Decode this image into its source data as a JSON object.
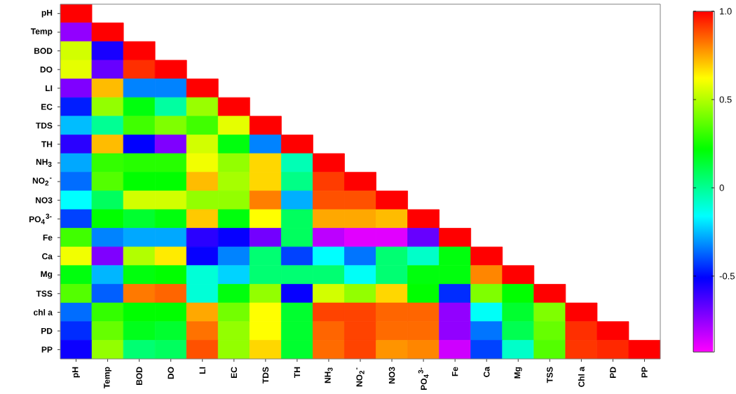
{
  "chart_data": {
    "type": "heatmap",
    "categories": [
      "pH",
      "Temp",
      "BOD",
      "DO",
      "LI",
      "EC",
      "TDS",
      "TH",
      "NH$_{3}$",
      "NO$_{2}$$^{-}$",
      "NO3",
      "PO$_{4}$$^{3-}$",
      "Fe",
      "Ca",
      "Mg",
      "TSS",
      "Chl a",
      "PD",
      "PP"
    ],
    "y_categories": [
      "pH",
      "Temp",
      "BOD",
      "DO",
      "LI",
      "EC",
      "TDS",
      "TH",
      "NH$_{3}$",
      "NO$_{2}$$^{-}$",
      "NO3",
      "PO$_{4}$$^{3-}$",
      "Fe",
      "Ca",
      "Mg",
      "TSS",
      "chl a",
      "PD",
      "PP"
    ],
    "cells": [
      [
        1,
        null,
        null,
        null,
        null,
        null,
        null,
        null,
        null,
        null,
        null,
        null,
        null,
        null,
        null,
        null,
        null,
        null,
        null
      ],
      [
        -0.75,
        1,
        null,
        null,
        null,
        null,
        null,
        null,
        null,
        null,
        null,
        null,
        null,
        null,
        null,
        null,
        null,
        null,
        null
      ],
      [
        0.55,
        -0.55,
        1,
        null,
        null,
        null,
        null,
        null,
        null,
        null,
        null,
        null,
        null,
        null,
        null,
        null,
        null,
        null,
        null
      ],
      [
        0.58,
        -0.68,
        0.93,
        1,
        null,
        null,
        null,
        null,
        null,
        null,
        null,
        null,
        null,
        null,
        null,
        null,
        null,
        null,
        null
      ],
      [
        -0.72,
        0.72,
        -0.33,
        -0.33,
        1,
        null,
        null,
        null,
        null,
        null,
        null,
        null,
        null,
        null,
        null,
        null,
        null,
        null,
        null
      ],
      [
        -0.47,
        0.45,
        0.2,
        -0.02,
        0.46,
        1,
        null,
        null,
        null,
        null,
        null,
        null,
        null,
        null,
        null,
        null,
        null,
        null,
        null
      ],
      [
        -0.25,
        0.0,
        0.32,
        0.42,
        0.32,
        0.58,
        1,
        null,
        null,
        null,
        null,
        null,
        null,
        null,
        null,
        null,
        null,
        null,
        null
      ],
      [
        -0.58,
        0.72,
        -0.51,
        -0.72,
        0.55,
        0.2,
        -0.33,
        1,
        null,
        null,
        null,
        null,
        null,
        null,
        null,
        null,
        null,
        null,
        null
      ],
      [
        -0.28,
        0.3,
        0.28,
        0.28,
        0.6,
        0.45,
        0.68,
        -0.05,
        1,
        null,
        null,
        null,
        null,
        null,
        null,
        null,
        null,
        null,
        null
      ],
      [
        -0.36,
        0.35,
        0.22,
        0.22,
        0.72,
        0.48,
        0.68,
        0.02,
        0.91,
        1,
        null,
        null,
        null,
        null,
        null,
        null,
        null,
        null,
        null
      ],
      [
        -0.16,
        0.08,
        0.55,
        0.55,
        0.45,
        0.45,
        0.81,
        -0.27,
        0.88,
        0.88,
        1,
        null,
        null,
        null,
        null,
        null,
        null,
        null,
        null
      ],
      [
        -0.42,
        0.22,
        0.15,
        0.2,
        0.7,
        0.2,
        0.62,
        0.08,
        0.75,
        0.75,
        0.72,
        1,
        null,
        null,
        null,
        null,
        null,
        null,
        null
      ],
      [
        0.32,
        -0.33,
        -0.28,
        -0.28,
        -0.58,
        -0.52,
        -0.7,
        0.08,
        -0.82,
        -0.88,
        -0.88,
        -0.68,
        1,
        null,
        null,
        null,
        null,
        null,
        null
      ],
      [
        0.6,
        -0.72,
        0.5,
        0.65,
        -0.52,
        -0.33,
        0.05,
        -0.42,
        -0.16,
        -0.35,
        0.05,
        -0.08,
        0.2,
        1,
        null,
        null,
        null,
        null,
        null
      ],
      [
        0.2,
        -0.26,
        0.2,
        0.22,
        -0.1,
        -0.22,
        0.05,
        0.05,
        0.05,
        -0.15,
        0.05,
        0.2,
        0.2,
        0.8,
        1,
        null,
        null,
        null,
        null
      ],
      [
        0.35,
        -0.38,
        0.82,
        0.85,
        -0.1,
        0.2,
        0.45,
        -0.52,
        0.55,
        0.45,
        0.68,
        0.22,
        -0.45,
        0.42,
        0.22,
        1,
        null,
        null,
        null
      ],
      [
        -0.36,
        0.3,
        0.22,
        0.22,
        0.75,
        0.4,
        0.62,
        0.15,
        0.9,
        0.9,
        0.85,
        0.85,
        -0.75,
        -0.15,
        0.15,
        0.42,
        1,
        null,
        null
      ],
      [
        -0.45,
        0.38,
        0.18,
        0.15,
        0.83,
        0.45,
        0.62,
        0.15,
        0.85,
        0.9,
        0.84,
        0.84,
        -0.75,
        -0.35,
        0.1,
        0.38,
        0.93,
        1,
        null
      ],
      [
        -0.53,
        0.45,
        0.05,
        0.08,
        0.88,
        0.45,
        0.68,
        0.15,
        0.84,
        0.9,
        0.78,
        0.8,
        -0.85,
        -0.42,
        -0.08,
        0.35,
        0.92,
        0.94,
        1
      ]
    ],
    "clim": [
      -0.93,
      1.0
    ],
    "cticks": [
      -0.5,
      0,
      0.5,
      {
        "value": 1.0,
        "label": "1.0"
      }
    ]
  }
}
